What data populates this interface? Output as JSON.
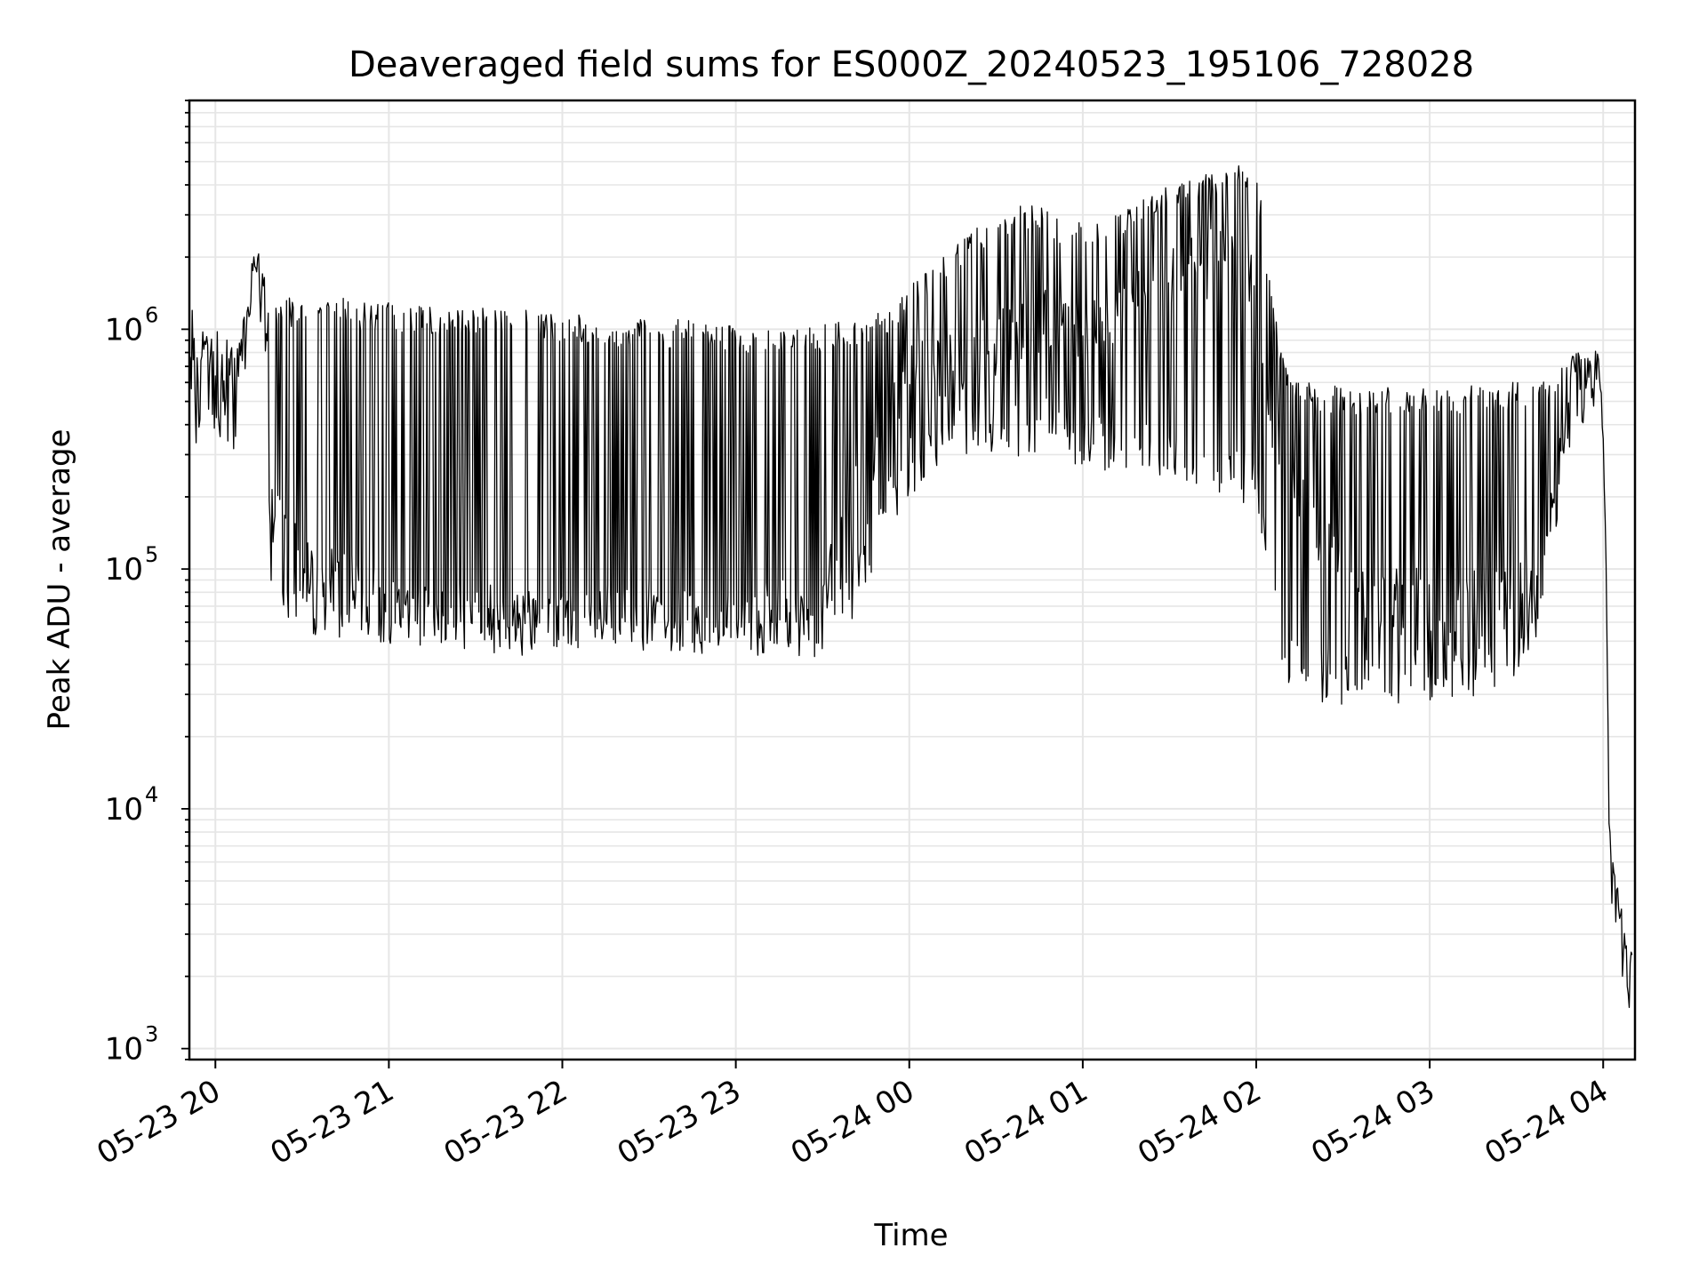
{
  "chart_data": {
    "type": "line",
    "title": "Deaveraged field sums for ES000Z_20240523_195106_728028",
    "xlabel": "Time",
    "ylabel": "Peak ADU - average",
    "yscale": "log",
    "ylim": [
      900,
      9000000
    ],
    "xlim": [
      "05-23 19:51",
      "05-24 04:11"
    ],
    "grid": true,
    "line_color": "#000000",
    "grid_color": "#e6e6e6",
    "x_ticks": [
      "05-23 20",
      "05-23 21",
      "05-23 22",
      "05-23 23",
      "05-24 00",
      "05-24 01",
      "05-24 02",
      "05-24 03",
      "05-24 04"
    ],
    "y_ticks": [
      {
        "base": "10",
        "exp": "3",
        "value": 1000
      },
      {
        "base": "10",
        "exp": "4",
        "value": 10000
      },
      {
        "base": "10",
        "exp": "5",
        "value": 100000
      },
      {
        "base": "10",
        "exp": "6",
        "value": 1000000
      }
    ],
    "series": [
      {
        "note_time_unit": "clock time",
        "x": [
          "05-23 19:51",
          "05-23 19:52",
          "05-23 19:54",
          "05-23 19:56",
          "05-23 19:58",
          "05-23 20:00",
          "05-23 20:02",
          "05-23 20:04",
          "05-23 20:06",
          "05-23 20:08",
          "05-23 20:10",
          "05-23 20:12",
          "05-23 20:14",
          "05-23 20:16",
          "05-23 20:18",
          "05-23 20:19",
          "05-23 20:20",
          "05-23 20:21",
          "05-23 20:22",
          "05-23 20:24",
          "05-23 20:26",
          "05-23 20:28",
          "05-23 20:30",
          "05-23 20:35",
          "05-23 20:40",
          "05-23 20:45",
          "05-23 20:50",
          "05-23 20:55",
          "05-23 21:00",
          "05-23 21:10",
          "05-23 21:20",
          "05-23 21:30",
          "05-23 21:40",
          "05-23 21:50",
          "05-23 22:00",
          "05-23 22:10",
          "05-23 22:20",
          "05-23 22:30",
          "05-23 22:40",
          "05-23 22:50",
          "05-23 23:00",
          "05-23 23:10",
          "05-23 23:20",
          "05-23 23:30",
          "05-23 23:40",
          "05-23 23:50",
          "05-24 00:00",
          "05-24 00:10",
          "05-24 00:20",
          "05-24 00:30",
          "05-24 00:40",
          "05-24 00:50",
          "05-24 01:00",
          "05-24 01:10",
          "05-24 01:20",
          "05-24 01:30",
          "05-24 01:40",
          "05-24 01:50",
          "05-24 02:00",
          "05-24 02:05",
          "05-24 02:10",
          "05-24 02:20",
          "05-24 02:30",
          "05-24 02:40",
          "05-24 02:50",
          "05-24 03:00",
          "05-24 03:10",
          "05-24 03:20",
          "05-24 03:30",
          "05-24 03:40",
          "05-24 03:45",
          "05-24 03:50",
          "05-24 03:55",
          "05-24 03:58",
          "05-24 04:00",
          "05-24 04:01",
          "05-24 04:02",
          "05-24 04:04",
          "05-24 04:06",
          "05-24 04:08",
          "05-24 04:10"
        ],
        "y": [
          650000,
          900000,
          500000,
          700000,
          800000,
          600000,
          750000,
          700000,
          650000,
          700000,
          800000,
          1200000,
          2200000,
          1500000,
          900000,
          250000,
          200000,
          180000,
          200000,
          220000,
          150000,
          130000,
          100000,
          80000,
          90000,
          85000,
          80000,
          75000,
          75000,
          70000,
          68000,
          65000,
          60000,
          60000,
          58000,
          60000,
          62000,
          65000,
          60000,
          58000,
          60000,
          62000,
          65000,
          70000,
          200000,
          350000,
          600000,
          700000,
          800000,
          900000,
          1000000,
          1100000,
          1000000,
          1200000,
          1400000,
          1600000,
          1800000,
          2000000,
          1500000,
          400000,
          300000,
          150000,
          100000,
          80000,
          75000,
          70000,
          70000,
          72000,
          75000,
          150000,
          350000,
          500000,
          600000,
          650000,
          400000,
          100000,
          8000,
          4000,
          3000,
          2200,
          2000
        ],
        "upper": [
          950000,
          1000000,
          900000,
          1000000,
          1050000,
          1000000,
          1000000,
          950000,
          900000,
          950000,
          1200000,
          1500000,
          2400000,
          2200000,
          1400000,
          1300000,
          1300000,
          1300000,
          1300000,
          1350000,
          1350000,
          1350000,
          1350000,
          1350000,
          1350000,
          1350000,
          1300000,
          1300000,
          1300000,
          1250000,
          1250000,
          1250000,
          1200000,
          1200000,
          1150000,
          1150000,
          1100000,
          1100000,
          1100000,
          1100000,
          1050000,
          1050000,
          1050000,
          1050000,
          1100000,
          1200000,
          1500000,
          2000000,
          2500000,
          3000000,
          3500000,
          3000000,
          2800000,
          3000000,
          3500000,
          4000000,
          4500000,
          5000000,
          5200000,
          1500000,
          700000,
          600000,
          580000,
          580000,
          580000,
          580000,
          580000,
          600000,
          600000,
          620000,
          700000,
          800000,
          900000,
          800000,
          450000,
          120000,
          9000,
          5000,
          4500,
          3000,
          2500
        ],
        "lower": [
          450000,
          400000,
          300000,
          350000,
          400000,
          300000,
          350000,
          350000,
          300000,
          350000,
          500000,
          900000,
          1600000,
          900000,
          500000,
          90000,
          80000,
          75000,
          70000,
          65000,
          60000,
          58000,
          55000,
          52000,
          52000,
          50000,
          50000,
          48000,
          48000,
          48000,
          47000,
          46000,
          46000,
          46000,
          45000,
          45000,
          45000,
          45000,
          44000,
          44000,
          44000,
          43000,
          43000,
          43000,
          60000,
          120000,
          200000,
          250000,
          300000,
          280000,
          300000,
          320000,
          260000,
          250000,
          240000,
          230000,
          220000,
          200000,
          160000,
          60000,
          30000,
          28000,
          26000,
          26000,
          27000,
          28000,
          28000,
          30000,
          32000,
          60000,
          200000,
          350000,
          450000,
          500000,
          300000,
          80000,
          6000,
          3000,
          2000,
          1500,
          1400
        ]
      }
    ]
  }
}
